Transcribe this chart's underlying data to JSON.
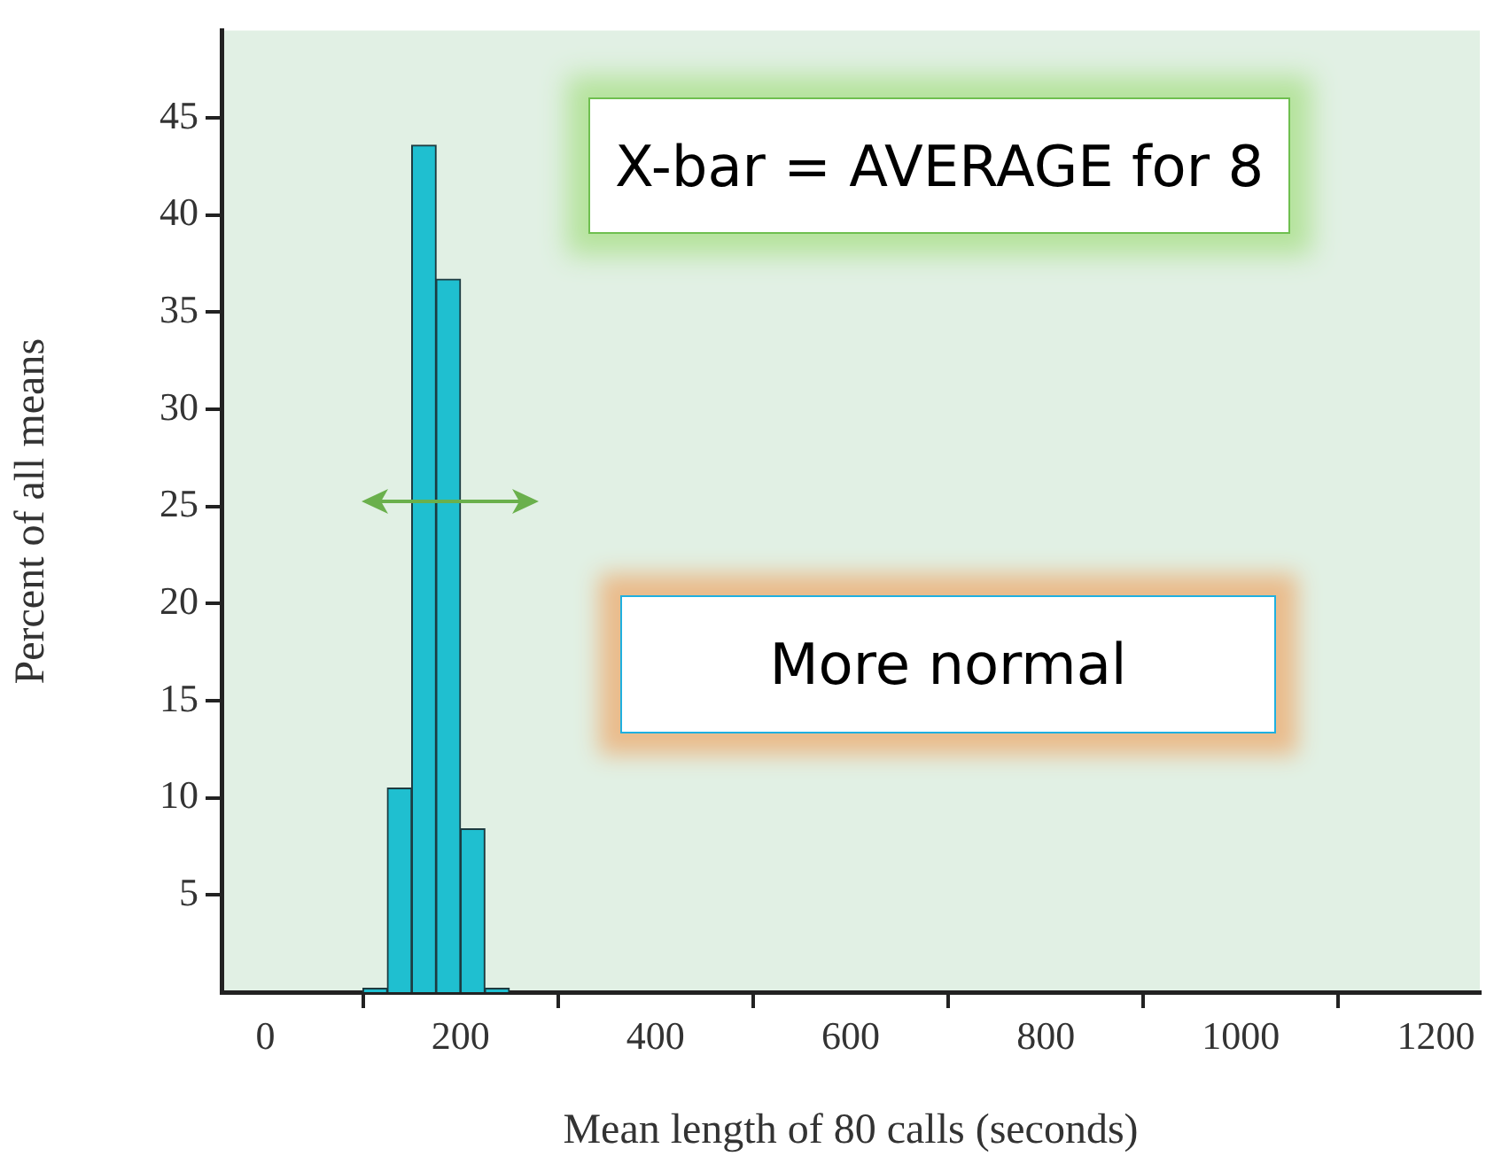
{
  "chart_data": {
    "type": "histogram",
    "xlabel": "Mean length of 80 calls (seconds)",
    "ylabel": "Percent of all means",
    "bins": [
      100,
      125,
      150,
      175,
      200,
      225,
      250
    ],
    "values": [
      0.2,
      10.5,
      43.6,
      36.7,
      8.4,
      0.2
    ],
    "color": "#1fbfd0",
    "xlim": [
      -45,
      1245
    ],
    "xticks": [
      0,
      200,
      400,
      600,
      800,
      1000,
      1200
    ],
    "ylim": [
      0,
      49.5
    ],
    "yticks": [
      5,
      10,
      15,
      20,
      25,
      30,
      35,
      40,
      45
    ],
    "annotations": [
      "X-bar = AVERAGE for 8",
      "More normal"
    ]
  }
}
